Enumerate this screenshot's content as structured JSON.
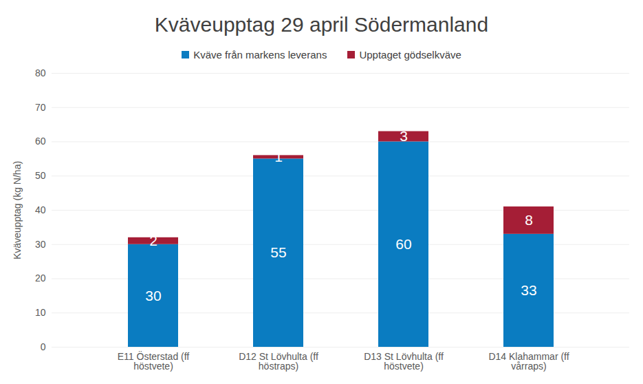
{
  "chart_data": {
    "type": "bar",
    "title": "Kväveupptag 29 april Södermanland",
    "y_label": "Kväveupptag (kg N/ha)",
    "categories": [
      "E11 Österstad (ff höstvete)",
      "D12 St Lövhulta (ff höstraps)",
      "D13 St Lövhulta (ff höstvete)",
      "D14 Klahammar (ff vårraps)"
    ],
    "series": [
      {
        "name": "Kväve från markens leverans",
        "color": "#0A7CC1",
        "values": [
          30,
          55,
          60,
          33
        ]
      },
      {
        "name": "Upptaget gödselkväve",
        "color": "#A51E36",
        "values": [
          2,
          1,
          3,
          8
        ]
      }
    ],
    "stacked": true,
    "data_labels": true,
    "ylim": [
      0,
      80
    ],
    "yticks": [
      0,
      10,
      20,
      30,
      40,
      50,
      60,
      70,
      80
    ],
    "grid": true,
    "legend": "top"
  }
}
